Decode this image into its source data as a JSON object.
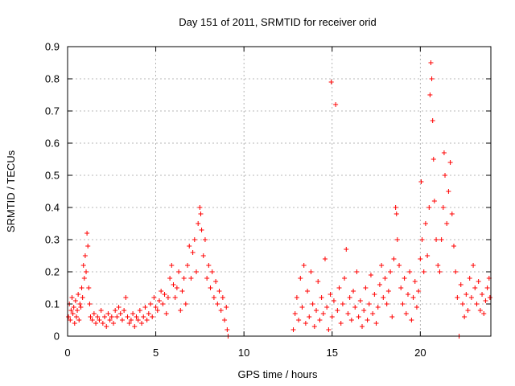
{
  "chart_data": {
    "type": "scatter",
    "title": "Day 151 of 2011, SRMTID for receiver orid",
    "xlabel": "GPS time / hours",
    "ylabel": "SRMTID / TECUs",
    "xlim": [
      0,
      24
    ],
    "ylim": [
      0,
      0.9
    ],
    "x_ticks": [
      0,
      5,
      10,
      15,
      20
    ],
    "y_ticks": [
      0,
      0.1,
      0.2,
      0.3,
      0.4,
      0.5,
      0.6,
      0.7,
      0.8,
      0.9
    ],
    "x_tick_labels": [
      "0",
      "5",
      "10",
      "15",
      "20"
    ],
    "y_tick_labels": [
      "0",
      "0.1",
      "0.2",
      "0.3",
      "0.4",
      "0.5",
      "0.6",
      "0.7",
      "0.8",
      "0.9"
    ],
    "grid": true,
    "marker": "+",
    "color": "#ff0000",
    "series": [
      {
        "name": "SRMTID",
        "points": [
          [
            0.05,
            0.06
          ],
          [
            0.1,
            0.1
          ],
          [
            0.15,
            0.05
          ],
          [
            0.2,
            0.08
          ],
          [
            0.25,
            0.12
          ],
          [
            0.3,
            0.07
          ],
          [
            0.35,
            0.09
          ],
          [
            0.4,
            0.04
          ],
          [
            0.45,
            0.11
          ],
          [
            0.5,
            0.06
          ],
          [
            0.55,
            0.08
          ],
          [
            0.6,
            0.13
          ],
          [
            0.65,
            0.05
          ],
          [
            0.7,
            0.1
          ],
          [
            0.75,
            0.09
          ],
          [
            0.8,
            0.15
          ],
          [
            0.85,
            0.12
          ],
          [
            0.9,
            0.22
          ],
          [
            0.95,
            0.18
          ],
          [
            1.0,
            0.25
          ],
          [
            1.05,
            0.2
          ],
          [
            1.1,
            0.32
          ],
          [
            1.15,
            0.28
          ],
          [
            1.2,
            0.15
          ],
          [
            1.25,
            0.1
          ],
          [
            1.3,
            0.06
          ],
          [
            1.4,
            0.05
          ],
          [
            1.5,
            0.07
          ],
          [
            1.6,
            0.04
          ],
          [
            1.7,
            0.06
          ],
          [
            1.8,
            0.05
          ],
          [
            1.9,
            0.08
          ],
          [
            2.0,
            0.04
          ],
          [
            2.1,
            0.06
          ],
          [
            2.2,
            0.03
          ],
          [
            2.3,
            0.07
          ],
          [
            2.4,
            0.05
          ],
          [
            2.5,
            0.06
          ],
          [
            2.6,
            0.04
          ],
          [
            2.7,
            0.08
          ],
          [
            2.8,
            0.06
          ],
          [
            2.9,
            0.09
          ],
          [
            3.0,
            0.07
          ],
          [
            3.1,
            0.05
          ],
          [
            3.2,
            0.08
          ],
          [
            3.3,
            0.12
          ],
          [
            3.4,
            0.06
          ],
          [
            3.5,
            0.04
          ],
          [
            3.6,
            0.05
          ],
          [
            3.7,
            0.07
          ],
          [
            3.8,
            0.03
          ],
          [
            3.9,
            0.06
          ],
          [
            4.0,
            0.05
          ],
          [
            4.1,
            0.08
          ],
          [
            4.2,
            0.04
          ],
          [
            4.3,
            0.06
          ],
          [
            4.4,
            0.09
          ],
          [
            4.5,
            0.05
          ],
          [
            4.6,
            0.07
          ],
          [
            4.7,
            0.1
          ],
          [
            4.8,
            0.06
          ],
          [
            4.9,
            0.12
          ],
          [
            5.0,
            0.09
          ],
          [
            5.1,
            0.08
          ],
          [
            5.2,
            0.11
          ],
          [
            5.3,
            0.14
          ],
          [
            5.4,
            0.1
          ],
          [
            5.5,
            0.13
          ],
          [
            5.6,
            0.07
          ],
          [
            5.7,
            0.12
          ],
          [
            5.8,
            0.18
          ],
          [
            5.9,
            0.22
          ],
          [
            6.0,
            0.16
          ],
          [
            6.1,
            0.12
          ],
          [
            6.2,
            0.15
          ],
          [
            6.3,
            0.2
          ],
          [
            6.4,
            0.08
          ],
          [
            6.5,
            0.14
          ],
          [
            6.6,
            0.18
          ],
          [
            6.7,
            0.1
          ],
          [
            6.8,
            0.22
          ],
          [
            6.9,
            0.28
          ],
          [
            7.0,
            0.18
          ],
          [
            7.1,
            0.26
          ],
          [
            7.2,
            0.3
          ],
          [
            7.3,
            0.2
          ],
          [
            7.4,
            0.35
          ],
          [
            7.5,
            0.4
          ],
          [
            7.55,
            0.38
          ],
          [
            7.6,
            0.33
          ],
          [
            7.7,
            0.25
          ],
          [
            7.8,
            0.3
          ],
          [
            7.9,
            0.18
          ],
          [
            8.0,
            0.22
          ],
          [
            8.1,
            0.15
          ],
          [
            8.2,
            0.2
          ],
          [
            8.3,
            0.12
          ],
          [
            8.4,
            0.17
          ],
          [
            8.5,
            0.1
          ],
          [
            8.6,
            0.14
          ],
          [
            8.7,
            0.08
          ],
          [
            8.8,
            0.12
          ],
          [
            8.9,
            0.05
          ],
          [
            9.0,
            0.09
          ],
          [
            9.05,
            0.02
          ],
          [
            9.1,
            0.0
          ],
          [
            12.8,
            0.02
          ],
          [
            12.9,
            0.07
          ],
          [
            13.0,
            0.12
          ],
          [
            13.1,
            0.05
          ],
          [
            13.2,
            0.18
          ],
          [
            13.3,
            0.09
          ],
          [
            13.4,
            0.22
          ],
          [
            13.5,
            0.04
          ],
          [
            13.6,
            0.14
          ],
          [
            13.7,
            0.06
          ],
          [
            13.8,
            0.2
          ],
          [
            13.9,
            0.1
          ],
          [
            14.0,
            0.03
          ],
          [
            14.1,
            0.08
          ],
          [
            14.2,
            0.17
          ],
          [
            14.3,
            0.05
          ],
          [
            14.4,
            0.12
          ],
          [
            14.5,
            0.07
          ],
          [
            14.6,
            0.24
          ],
          [
            14.7,
            0.09
          ],
          [
            14.8,
            0.02
          ],
          [
            14.9,
            0.13
          ],
          [
            14.95,
            0.79
          ],
          [
            15.0,
            0.06
          ],
          [
            15.1,
            0.11
          ],
          [
            15.2,
            0.72
          ],
          [
            15.3,
            0.08
          ],
          [
            15.4,
            0.15
          ],
          [
            15.5,
            0.04
          ],
          [
            15.6,
            0.1
          ],
          [
            15.7,
            0.18
          ],
          [
            15.8,
            0.27
          ],
          [
            15.9,
            0.07
          ],
          [
            16.0,
            0.12
          ],
          [
            16.1,
            0.05
          ],
          [
            16.2,
            0.14
          ],
          [
            16.3,
            0.09
          ],
          [
            16.4,
            0.2
          ],
          [
            16.5,
            0.06
          ],
          [
            16.6,
            0.11
          ],
          [
            16.7,
            0.03
          ],
          [
            16.8,
            0.08
          ],
          [
            16.9,
            0.15
          ],
          [
            17.0,
            0.05
          ],
          [
            17.1,
            0.1
          ],
          [
            17.2,
            0.19
          ],
          [
            17.3,
            0.07
          ],
          [
            17.4,
            0.13
          ],
          [
            17.5,
            0.04
          ],
          [
            17.6,
            0.09
          ],
          [
            17.7,
            0.16
          ],
          [
            17.8,
            0.22
          ],
          [
            17.9,
            0.12
          ],
          [
            18.0,
            0.18
          ],
          [
            18.1,
            0.1
          ],
          [
            18.2,
            0.14
          ],
          [
            18.3,
            0.2
          ],
          [
            18.4,
            0.06
          ],
          [
            18.5,
            0.24
          ],
          [
            18.6,
            0.4
          ],
          [
            18.65,
            0.38
          ],
          [
            18.7,
            0.3
          ],
          [
            18.8,
            0.22
          ],
          [
            18.9,
            0.15
          ],
          [
            19.0,
            0.1
          ],
          [
            19.1,
            0.18
          ],
          [
            19.2,
            0.07
          ],
          [
            19.3,
            0.13
          ],
          [
            19.4,
            0.2
          ],
          [
            19.5,
            0.05
          ],
          [
            19.6,
            0.12
          ],
          [
            19.7,
            0.17
          ],
          [
            19.8,
            0.09
          ],
          [
            19.9,
            0.14
          ],
          [
            20.0,
            0.24
          ],
          [
            20.05,
            0.48
          ],
          [
            20.1,
            0.3
          ],
          [
            20.2,
            0.2
          ],
          [
            20.3,
            0.35
          ],
          [
            20.4,
            0.25
          ],
          [
            20.5,
            0.4
          ],
          [
            20.55,
            0.75
          ],
          [
            20.6,
            0.85
          ],
          [
            20.65,
            0.8
          ],
          [
            20.7,
            0.67
          ],
          [
            20.75,
            0.55
          ],
          [
            20.8,
            0.42
          ],
          [
            20.9,
            0.3
          ],
          [
            21.0,
            0.22
          ],
          [
            21.1,
            0.2
          ],
          [
            21.2,
            0.3
          ],
          [
            21.3,
            0.4
          ],
          [
            21.35,
            0.57
          ],
          [
            21.4,
            0.5
          ],
          [
            21.5,
            0.35
          ],
          [
            21.6,
            0.45
          ],
          [
            21.7,
            0.54
          ],
          [
            21.8,
            0.38
          ],
          [
            21.9,
            0.28
          ],
          [
            22.0,
            0.2
          ],
          [
            22.1,
            0.12
          ],
          [
            22.2,
            0.0
          ],
          [
            22.3,
            0.16
          ],
          [
            22.4,
            0.1
          ],
          [
            22.5,
            0.06
          ],
          [
            22.6,
            0.13
          ],
          [
            22.7,
            0.08
          ],
          [
            22.8,
            0.18
          ],
          [
            22.9,
            0.12
          ],
          [
            23.0,
            0.22
          ],
          [
            23.1,
            0.15
          ],
          [
            23.2,
            0.1
          ],
          [
            23.3,
            0.17
          ],
          [
            23.4,
            0.08
          ],
          [
            23.5,
            0.13
          ],
          [
            23.6,
            0.07
          ],
          [
            23.7,
            0.11
          ],
          [
            23.8,
            0.15
          ],
          [
            23.9,
            0.18
          ],
          [
            23.95,
            0.12
          ]
        ]
      }
    ]
  }
}
